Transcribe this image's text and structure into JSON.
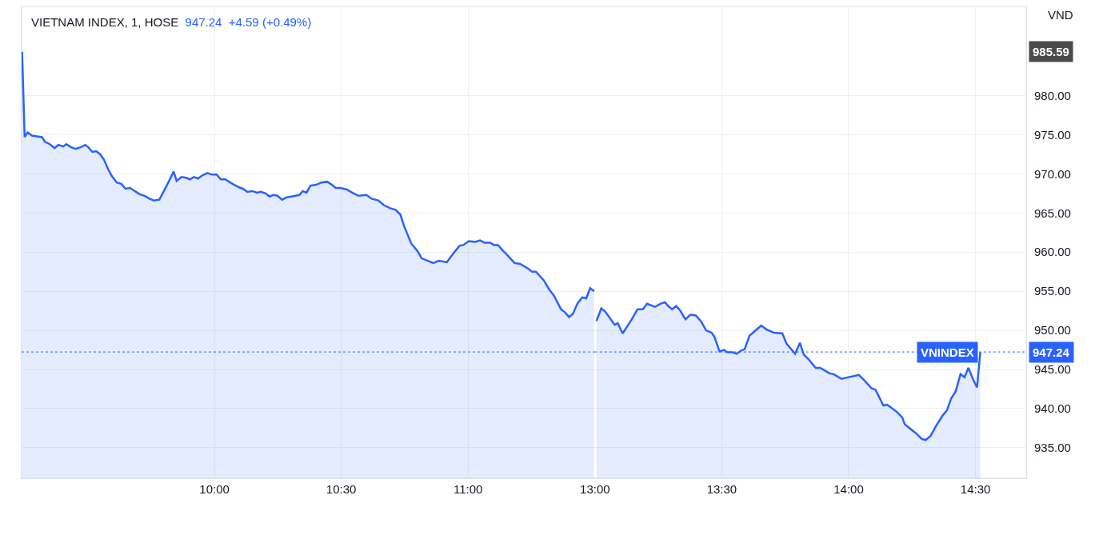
{
  "chart_data": [
    {
      "type": "area",
      "title": "VIETNAM INDEX, 1, HOSE",
      "subtitle": "947.24  +4.59 (+0.49%)",
      "x": [
        9.242,
        9.252,
        9.264,
        9.28,
        9.301,
        9.32,
        9.332,
        9.351,
        9.37,
        9.385,
        9.404,
        9.416,
        9.435,
        9.453,
        9.472,
        9.491,
        9.503,
        9.519,
        9.534,
        9.55,
        9.565,
        9.581,
        9.596,
        9.615,
        9.634,
        9.649,
        9.668,
        9.686,
        9.705,
        9.724,
        9.745,
        9.761,
        9.783,
        9.801,
        9.826,
        9.839,
        9.851,
        9.87,
        9.888,
        9.904,
        9.919,
        9.935,
        9.953,
        9.972,
        9.991,
        10.009,
        10.025,
        10.043,
        10.062,
        10.078,
        10.096,
        10.112,
        10.13,
        10.149,
        10.168,
        10.183,
        10.202,
        10.217,
        10.233,
        10.248,
        10.267,
        10.286,
        10.304,
        10.335,
        10.348,
        10.363,
        10.379,
        10.401,
        10.422,
        10.444,
        10.463,
        10.478,
        10.497,
        10.522,
        10.543,
        10.568,
        10.599,
        10.621,
        10.646,
        10.668,
        10.693,
        10.714,
        10.733,
        10.748,
        10.776,
        10.801,
        10.817,
        10.863,
        10.885,
        10.916,
        10.941,
        10.966,
        10.981,
        11.003,
        11.028,
        11.047,
        11.065,
        11.087,
        11.102,
        11.118,
        11.134,
        11.152,
        11.183,
        11.205,
        11.236,
        11.252,
        11.267,
        11.298,
        11.32,
        11.339,
        11.366,
        11.382,
        11.398,
        11.413,
        11.432,
        11.45,
        11.466,
        11.481,
        11.497
      ],
      "series": [
        {
          "color": "#2962ff",
          "values": [
            985.6,
            974.7,
            975.3,
            974.9,
            974.8,
            974.7,
            974.1,
            973.8,
            973.3,
            973.7,
            973.5,
            973.8,
            973.4,
            973.2,
            973.4,
            973.7,
            973.4,
            972.8,
            972.9,
            972.5,
            971.8,
            970.6,
            969.7,
            968.9,
            968.7,
            968.1,
            968.2,
            967.8,
            967.4,
            967.2,
            966.8,
            966.6,
            966.7,
            967.8,
            969.4,
            970.3,
            969.1,
            969.6,
            969.5,
            969.3,
            969.6,
            969.4,
            969.8,
            970.1,
            969.9,
            969.9,
            969.3,
            969.3,
            968.9,
            968.6,
            968.3,
            968.1,
            967.7,
            967.8,
            967.6,
            967.7,
            967.5,
            967.1,
            967.3,
            967.2,
            966.7,
            967.0,
            967.1,
            967.3,
            967.8,
            967.6,
            968.5,
            968.6,
            968.9,
            969.0,
            968.6,
            968.2,
            968.2,
            968.0,
            967.6,
            967.2,
            967.3,
            966.8,
            966.6,
            966.0,
            965.6,
            965.4,
            964.8,
            963.3,
            961.1,
            960.1,
            959.2,
            958.6,
            958.9,
            958.7,
            959.8,
            960.8,
            960.9,
            961.4,
            961.3,
            961.5,
            961.2,
            961.2,
            960.9,
            960.9,
            960.3,
            959.7,
            958.6,
            958.5,
            957.9,
            957.5,
            957.5,
            956.4,
            955.2,
            954.4,
            952.7,
            952.3,
            951.7,
            952.1,
            953.5,
            954.2,
            954.1,
            955.4,
            955.0
          ]
        }
      ],
      "xlim": [
        9.24,
        11.5
      ],
      "xticks": [
        {
          "value": 10,
          "label": "10:00"
        },
        {
          "value": 10.5,
          "label": "10:30"
        },
        {
          "value": 11,
          "label": "11:00"
        }
      ],
      "ylim": [
        931.1,
        991.4
      ],
      "yticks": [
        935,
        940,
        945,
        950,
        955,
        960,
        965,
        970,
        975,
        980
      ],
      "ref_lines": [
        {
          "axis": "y",
          "value": 947.24,
          "color": "#2962ff",
          "line_style": "dotted"
        }
      ],
      "tick_labels": "x",
      "grid": true
    },
    {
      "type": "area",
      "ylabel": "VND",
      "x": [
        13.006,
        13.025,
        13.04,
        13.056,
        13.078,
        13.09,
        13.109,
        13.127,
        13.143,
        13.168,
        13.189,
        13.205,
        13.236,
        13.258,
        13.276,
        13.289,
        13.304,
        13.32,
        13.335,
        13.351,
        13.357,
        13.376,
        13.398,
        13.419,
        13.438,
        13.46,
        13.472,
        13.491,
        13.509,
        13.522,
        13.543,
        13.559,
        13.575,
        13.59,
        13.609,
        13.63,
        13.655,
        13.677,
        13.705,
        13.739,
        13.755,
        13.789,
        13.808,
        13.823,
        13.842,
        13.87,
        13.888,
        13.925,
        13.941,
        13.972,
        14.04,
        14.059,
        14.09,
        14.106,
        14.137,
        14.152,
        14.189,
        14.211,
        14.221,
        14.267,
        14.289,
        14.304,
        14.323,
        14.345,
        14.37,
        14.388,
        14.404,
        14.422,
        14.441,
        14.457,
        14.472,
        14.491,
        14.506,
        14.519
      ],
      "series": [
        {
          "color": "#2962ff",
          "values": [
            951.2,
            952.8,
            952.4,
            951.7,
            950.7,
            950.9,
            949.6,
            950.5,
            951.3,
            952.7,
            952.7,
            953.4,
            953.0,
            953.4,
            953.6,
            953.1,
            952.7,
            953.1,
            952.6,
            951.7,
            951.4,
            952.0,
            951.9,
            951.1,
            950.0,
            949.7,
            949.1,
            947.3,
            947.5,
            947.2,
            947.2,
            947.0,
            947.4,
            947.6,
            949.3,
            949.9,
            950.6,
            950.1,
            949.7,
            949.6,
            948.3,
            947.0,
            948.4,
            946.9,
            946.3,
            945.2,
            945.2,
            944.5,
            944.4,
            943.8,
            944.3,
            943.7,
            942.6,
            942.4,
            940.4,
            940.5,
            939.6,
            938.9,
            938.0,
            936.8,
            936.1,
            936.0,
            936.5,
            937.8,
            939.1,
            939.8,
            941.3,
            942.2,
            944.4,
            944.0,
            945.2,
            943.7,
            942.7,
            947.2
          ]
        }
      ],
      "xlim": [
        13.0,
        14.7
      ],
      "xticks": [
        {
          "value": 13,
          "label": "13:00"
        },
        {
          "value": 13.5,
          "label": "13:30"
        },
        {
          "value": 14,
          "label": "14:00"
        },
        {
          "value": 14.5,
          "label": "14:30"
        }
      ],
      "ylim": [
        931.1,
        991.4
      ],
      "yticks": [
        {
          "value": 935,
          "label": "935.00"
        },
        {
          "value": 940,
          "label": "940.00"
        },
        {
          "value": 945,
          "label": "945.00"
        },
        {
          "value": 950,
          "label": "950.00"
        },
        {
          "value": 955,
          "label": "955.00"
        },
        {
          "value": 960,
          "label": "960.00"
        },
        {
          "value": 965,
          "label": "965.00"
        },
        {
          "value": 970,
          "label": "970.00"
        },
        {
          "value": 975,
          "label": "975.00"
        },
        {
          "value": 980,
          "label": "980.00"
        }
      ],
      "ref_lines": [
        {
          "axis": "y",
          "value": 947.24,
          "label": "VNINDEX",
          "color": "#2962ff",
          "line_style": "dotted"
        }
      ],
      "annotations": [
        "985.59",
        "947.24"
      ],
      "grid": true
    }
  ]
}
